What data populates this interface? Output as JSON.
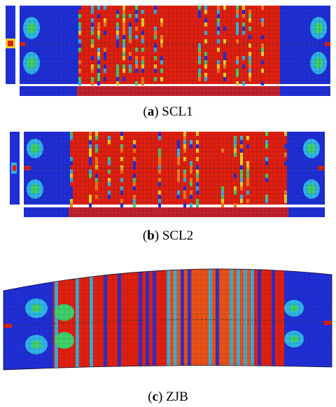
{
  "panels": [
    {
      "letter": "a",
      "label": "SCL1"
    },
    {
      "letter": "b",
      "label": "SCL2"
    },
    {
      "letter": "c",
      "label": "ZJB"
    }
  ],
  "colors": {
    "blue": "#1f2fd6",
    "cyan": "#2fb4e6",
    "green": "#3fd06a",
    "yellow": "#e8d22a",
    "orange": "#ef7a1c",
    "red": "#e0200f",
    "dark_red": "#c9180c",
    "mesh": "#1a1a3a"
  }
}
